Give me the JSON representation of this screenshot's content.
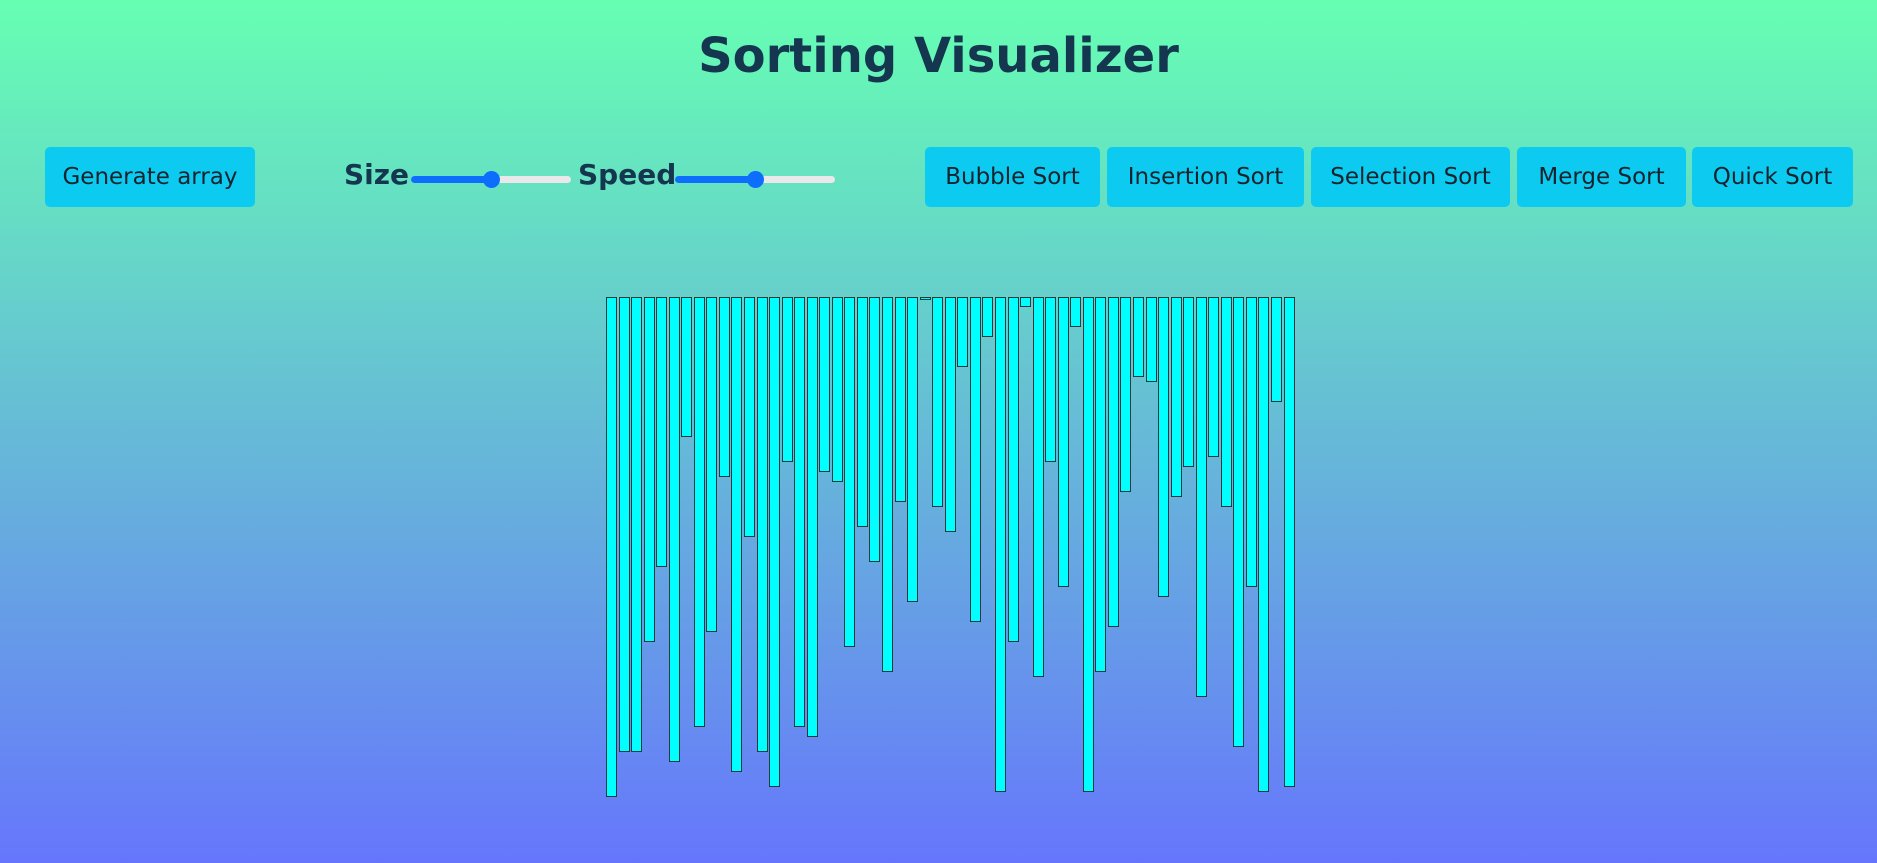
{
  "header": {
    "title": "Sorting Visualizer"
  },
  "controls": {
    "generate_label": "Generate array",
    "size_label": "Size",
    "speed_label": "Speed",
    "size_value_fraction": 0.5,
    "speed_value_fraction": 0.5
  },
  "algorithms": [
    {
      "label": "Bubble Sort"
    },
    {
      "label": "Insertion Sort"
    },
    {
      "label": "Selection Sort"
    },
    {
      "label": "Merge Sort"
    },
    {
      "label": "Quick Sort"
    }
  ],
  "colors": {
    "bar_fill": "#00ffff",
    "button_bg": "#0dcaf0",
    "slider_accent": "#0d6efd",
    "title_color": "#14364f"
  },
  "array_values": [
    500,
    455,
    455,
    345,
    270,
    465,
    140,
    430,
    335,
    180,
    475,
    240,
    455,
    490,
    165,
    430,
    440,
    175,
    185,
    350,
    230,
    265,
    375,
    205,
    305,
    2,
    210,
    235,
    70,
    325,
    40,
    495,
    345,
    10,
    380,
    165,
    290,
    30,
    495,
    375,
    330,
    195,
    80,
    85,
    300,
    200,
    170,
    400,
    160,
    210,
    450,
    290,
    495,
    105,
    490
  ]
}
